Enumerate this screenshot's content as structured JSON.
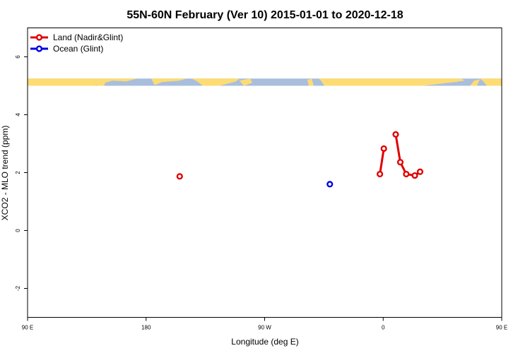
{
  "chart_data": {
    "type": "line",
    "title": "55N-60N February (Ver 10)   2015-01-01 to 2020-12-18",
    "xlabel": "Longitude (deg E)",
    "ylabel": "XCO2 - MLO trend (ppm)",
    "xlim": [
      90,
      450
    ],
    "ylim": [
      -3,
      7
    ],
    "x_ticks": [
      {
        "value": 90,
        "label": "90 E"
      },
      {
        "value": 180,
        "label": "180"
      },
      {
        "value": 270,
        "label": "90 W"
      },
      {
        "value": 360,
        "label": "0"
      },
      {
        "value": 450,
        "label": "90 E"
      },
      {
        "value": 540,
        "label": "180"
      }
    ],
    "y_ticks": [
      {
        "value": -2,
        "label": "-2"
      },
      {
        "value": 0,
        "label": "0"
      },
      {
        "value": 2,
        "label": "2"
      },
      {
        "value": 4,
        "label": "4"
      },
      {
        "value": 6,
        "label": "6"
      }
    ],
    "legend": {
      "position": "top-left"
    },
    "series": [
      {
        "name": "Land (Nadir&Glint)",
        "color": "#e00000",
        "segments": [
          [
            {
              "x": 205.5,
              "y": 1.87
            }
          ],
          [
            {
              "x": 357.5,
              "y": 1.95
            },
            {
              "x": 360.5,
              "y": 2.83
            }
          ],
          [
            {
              "x": 369.5,
              "y": 3.32
            },
            {
              "x": 373,
              "y": 2.36
            },
            {
              "x": 377.5,
              "y": 1.95
            },
            {
              "x": 384,
              "y": 1.9
            },
            {
              "x": 388,
              "y": 2.03
            }
          ]
        ]
      },
      {
        "name": "Ocean (Glint)",
        "color": "#0000e0",
        "segments": [
          [
            {
              "x": 319.5,
              "y": 1.6
            }
          ]
        ]
      }
    ],
    "land_ocean_band": {
      "y_range": [
        5.0,
        5.25
      ],
      "ocean_color": "#a9bedc",
      "land_color": "#fedc74"
    }
  }
}
